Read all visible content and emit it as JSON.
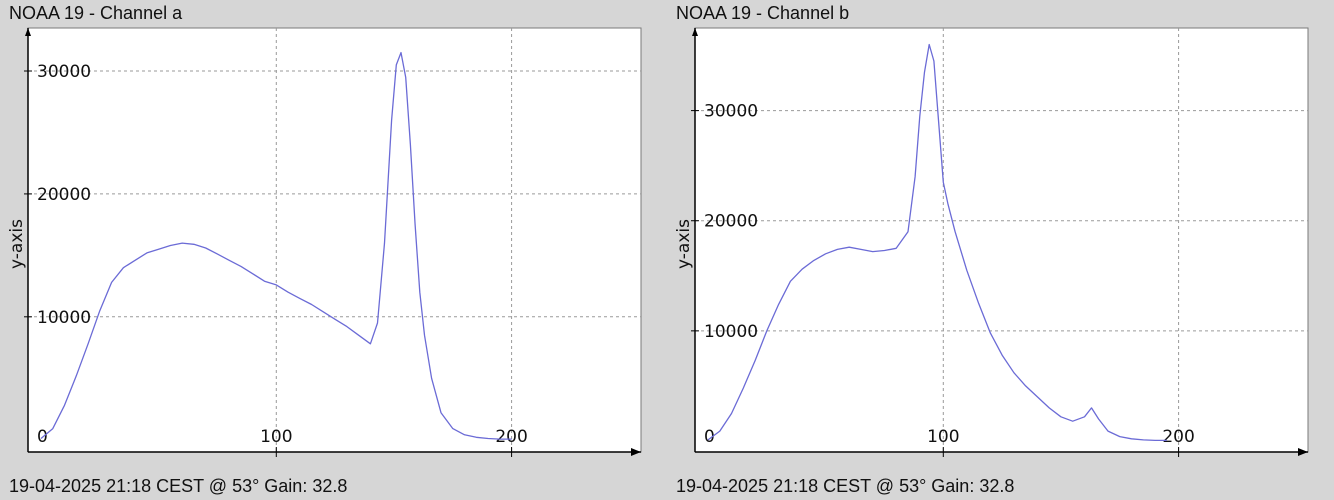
{
  "charts": [
    {
      "title": "NOAA 19 - Channel a",
      "footer": "19-04-2025 21:18 CEST @ 53° Gain: 32.8"
    },
    {
      "title": "NOAA 19 - Channel b",
      "footer": "19-04-2025 21:18 CEST @ 53° Gain: 32.8"
    }
  ],
  "colors": {
    "background": "#d6d6d6",
    "plot_background": "#ffffff",
    "line": "#6b6bd6",
    "grid": "#9a9a9a",
    "axis": "#000000"
  },
  "chart_data": [
    {
      "type": "line",
      "xlabel": "",
      "ylabel": "y-axis",
      "xlim": [
        0,
        255
      ],
      "ylim": [
        -1000,
        33500
      ],
      "xticks": [
        0,
        100,
        200
      ],
      "yticks": [
        0,
        10000,
        20000,
        30000
      ],
      "grid": true,
      "series": [
        {
          "x": [
            0,
            5,
            10,
            15,
            20,
            25,
            30,
            35,
            40,
            45,
            50,
            55,
            60,
            65,
            70,
            75,
            80,
            85,
            90,
            95,
            100,
            105,
            110,
            115,
            120,
            125,
            130,
            135,
            140,
            143,
            146,
            149,
            151,
            153,
            155,
            157,
            159,
            161,
            163,
            166,
            170,
            175,
            180,
            185,
            190,
            195,
            200
          ],
          "values": [
            100,
            900,
            2800,
            5200,
            7800,
            10500,
            12800,
            14000,
            14600,
            15200,
            15500,
            15800,
            16000,
            15900,
            15600,
            15100,
            14600,
            14100,
            13500,
            12900,
            12600,
            12000,
            11500,
            11000,
            10400,
            9800,
            9200,
            8500,
            7800,
            9500,
            16000,
            26000,
            30500,
            31500,
            29500,
            24000,
            17500,
            12000,
            8500,
            5000,
            2200,
            900,
            400,
            200,
            100,
            50,
            50
          ]
        }
      ]
    },
    {
      "type": "line",
      "xlabel": "",
      "ylabel": "y-axis",
      "xlim": [
        0,
        255
      ],
      "ylim": [
        -1000,
        37500
      ],
      "xticks": [
        0,
        100,
        200
      ],
      "yticks": [
        0,
        10000,
        20000,
        30000
      ],
      "grid": true,
      "series": [
        {
          "x": [
            0,
            5,
            10,
            15,
            20,
            25,
            30,
            35,
            40,
            45,
            50,
            55,
            60,
            65,
            70,
            75,
            80,
            85,
            88,
            90,
            92,
            94,
            96,
            98,
            100,
            102,
            105,
            110,
            115,
            120,
            125,
            130,
            135,
            140,
            145,
            150,
            155,
            160,
            163,
            166,
            170,
            175,
            180,
            185,
            190,
            195
          ],
          "values": [
            100,
            900,
            2500,
            4800,
            7300,
            10000,
            12400,
            14500,
            15600,
            16400,
            17000,
            17400,
            17600,
            17400,
            17200,
            17300,
            17500,
            19000,
            24000,
            29500,
            33500,
            36000,
            34500,
            29000,
            23500,
            21500,
            19000,
            15500,
            12500,
            9800,
            7800,
            6200,
            5000,
            4000,
            3000,
            2200,
            1800,
            2200,
            3000,
            2000,
            900,
            400,
            200,
            100,
            50,
            50
          ]
        }
      ]
    }
  ]
}
